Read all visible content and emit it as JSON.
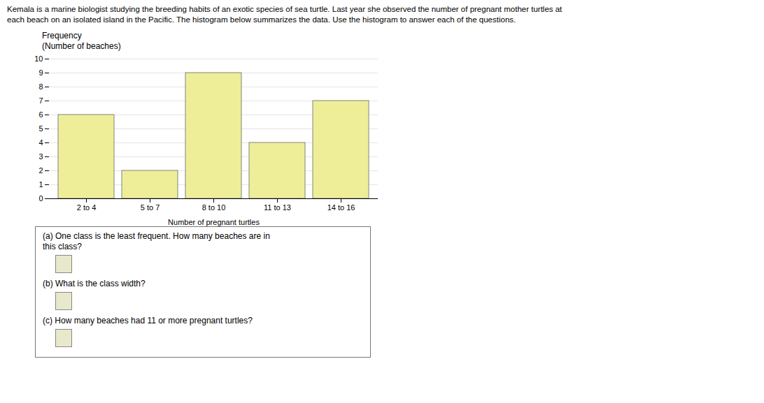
{
  "chart_data": {
    "type": "bar",
    "title": "Kemala is a marine biologist studying the breeding habits of an exotic species of sea turtle. Last year she observed the number of pregnant mother turtles at",
    "subtitle": "each beach on an isolated island in the Pacific. The histogram below summarizes the data. Use the histogram to answer each of the questions.",
    "ylabel": "Frequency\n(Number of beaches)",
    "xlabel": "Number of pregnant turtles",
    "categories": [
      "2 to 4",
      "5 to 7",
      "8 to 10",
      "11 to 13",
      "14 to 16"
    ],
    "values": [
      6,
      2,
      9,
      4,
      7
    ],
    "color": "#eeee99",
    "ylim": [
      0,
      10
    ],
    "yticks": [
      0,
      1,
      2,
      3,
      4,
      5,
      6,
      7,
      8,
      9,
      10
    ],
    "grid": true,
    "annotations": [
      "(a) One class is the least frequent. How many beaches are in\nthis class?",
      "(b) What is the class width?",
      "(c) How many beaches had 11 or more pregnant turtles?"
    ]
  }
}
